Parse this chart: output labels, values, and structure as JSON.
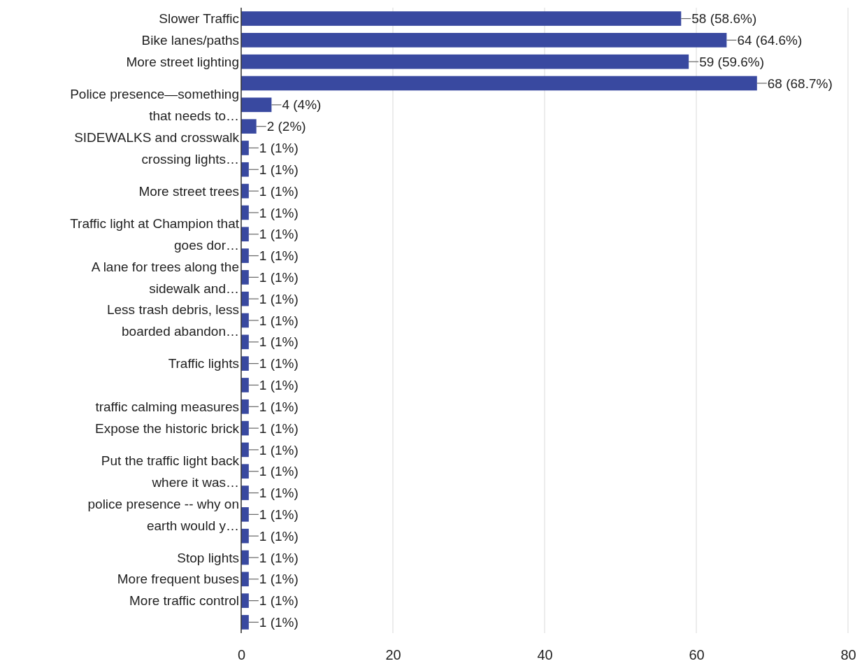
{
  "chart_data": {
    "type": "bar",
    "orientation": "horizontal",
    "categories": [
      "Slower Traffic",
      "Bike lanes/paths",
      "More street lighting",
      null,
      "Police presence—something that needs to…",
      null,
      "SIDEWALKS and crosswalk crossing lights…",
      null,
      "More street trees",
      null,
      "Traffic light at Champion that goes dor…",
      null,
      "A lane for trees along the sidewalk and…",
      null,
      "Less trash debris, less boarded abandon…",
      null,
      "Traffic lights",
      null,
      "traffic calming measures",
      "Expose the historic brick",
      null,
      "Put the traffic light back where it was…",
      null,
      "police presence -- why on earth would y…",
      null,
      "Stop lights",
      "More frequent buses",
      "More traffic control",
      null
    ],
    "values": [
      58,
      64,
      59,
      68,
      4,
      2,
      1,
      1,
      1,
      1,
      1,
      1,
      1,
      1,
      1,
      1,
      1,
      1,
      1,
      1,
      1,
      1,
      1,
      1,
      1,
      1,
      1,
      1,
      1
    ],
    "value_labels": [
      "58 (58.6%)",
      "64 (64.6%)",
      "59 (59.6%)",
      "68 (68.7%)",
      "4 (4%)",
      "2 (2%)",
      "1 (1%)",
      "1 (1%)",
      "1 (1%)",
      "1 (1%)",
      "1 (1%)",
      "1 (1%)",
      "1 (1%)",
      "1 (1%)",
      "1 (1%)",
      "1 (1%)",
      "1 (1%)",
      "1 (1%)",
      "1 (1%)",
      "1 (1%)",
      "1 (1%)",
      "1 (1%)",
      "1 (1%)",
      "1 (1%)",
      "1 (1%)",
      "1 (1%)",
      "1 (1%)",
      "1 (1%)",
      "1 (1%)"
    ],
    "color": "#3949a0",
    "xlim": [
      0,
      80
    ],
    "xticks": [
      0,
      20,
      40,
      60,
      80
    ],
    "grid": "x"
  }
}
